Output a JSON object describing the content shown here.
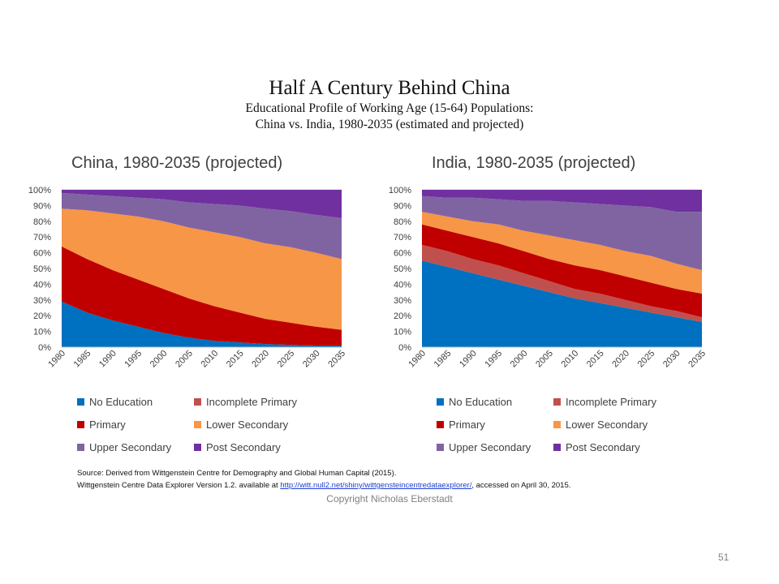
{
  "slide": {
    "title": "Half A Century Behind China",
    "subtitle_line1": "Educational Profile of Working Age (15-64) Populations:",
    "subtitle_line2": "China vs. India, 1980-2035 (estimated and projected)",
    "source_line1": "Source: Derived from Wittgenstein Centre for Demography and Global Human Capital (2015).",
    "source_line2_prefix": "Wittgenstein Centre Data Explorer Version 1.2. available at ",
    "source_link": "http://witt.null2.net/shiny/wittgensteincentredataexplorer/",
    "source_line2_suffix": ", accessed on April 30, 2015.",
    "copyright": "Copyright Nicholas Eberstadt",
    "page_number": "51"
  },
  "colors": {
    "No Education": "#0070c0",
    "Incomplete Primary": "#c0504d",
    "Primary": "#c00000",
    "Lower Secondary": "#f79646",
    "Upper Secondary": "#8064a2",
    "Post Secondary": "#7030a0",
    "gridline": "#d9d9d9",
    "axis_text": "#404040"
  },
  "chart_data": [
    {
      "type": "area",
      "stacked": true,
      "title": "China, 1980-2035 (projected)",
      "x": [
        "1980",
        "1985",
        "1990",
        "1995",
        "2000",
        "2005",
        "2010",
        "2015",
        "2020",
        "2025",
        "2030",
        "2035"
      ],
      "ylim": [
        0,
        100
      ],
      "yticks": [
        "0%",
        "10%",
        "20%",
        "30%",
        "40%",
        "50%",
        "60%",
        "70%",
        "80%",
        "90%",
        "100%"
      ],
      "legend_position": "bottom",
      "series": [
        {
          "name": "No Education",
          "values": [
            29,
            22,
            17,
            13,
            9,
            6,
            4,
            3,
            2,
            1.5,
            1,
            1
          ]
        },
        {
          "name": "Incomplete Primary",
          "values": [
            0,
            0,
            0,
            0,
            0,
            0,
            0,
            0,
            0,
            0,
            0,
            0
          ]
        },
        {
          "name": "Primary",
          "values": [
            35,
            34,
            32,
            30,
            28,
            25,
            22,
            19,
            16,
            14,
            12,
            10
          ]
        },
        {
          "name": "Lower Secondary",
          "values": [
            24,
            31,
            36,
            40,
            43,
            45,
            47,
            48,
            48,
            48,
            47,
            45
          ]
        },
        {
          "name": "Upper Secondary",
          "values": [
            10,
            10,
            11,
            12,
            14,
            16,
            18,
            20,
            22,
            23,
            24,
            26
          ]
        },
        {
          "name": "Post Secondary",
          "values": [
            2,
            3,
            4,
            5,
            6,
            8,
            9,
            10,
            12,
            13.5,
            16,
            18
          ]
        }
      ]
    },
    {
      "type": "area",
      "stacked": true,
      "title": "India, 1980-2035 (projected)",
      "x": [
        "1980",
        "1985",
        "1990",
        "1995",
        "2000",
        "2005",
        "2010",
        "2015",
        "2020",
        "2025",
        "2030",
        "2035"
      ],
      "ylim": [
        0,
        100
      ],
      "yticks": [
        "0%",
        "10%",
        "20%",
        "30%",
        "40%",
        "50%",
        "60%",
        "70%",
        "80%",
        "90%",
        "100%"
      ],
      "legend_position": "bottom",
      "series": [
        {
          "name": "No Education",
          "values": [
            55,
            51,
            47,
            43,
            39,
            35,
            31,
            28,
            25,
            22,
            19,
            16
          ]
        },
        {
          "name": "Incomplete Primary",
          "values": [
            10,
            10,
            9,
            9,
            8,
            7,
            6,
            6,
            5,
            4,
            4,
            3
          ]
        },
        {
          "name": "Primary",
          "values": [
            13,
            13,
            14,
            14,
            14,
            14,
            15,
            15,
            15,
            15,
            14,
            15
          ]
        },
        {
          "name": "Lower Secondary",
          "values": [
            8,
            9,
            10,
            12,
            13,
            15,
            16,
            16,
            16,
            17,
            16,
            15
          ]
        },
        {
          "name": "Upper Secondary",
          "values": [
            10,
            12,
            15,
            16,
            19,
            22,
            24,
            26,
            29,
            31,
            33,
            37
          ]
        },
        {
          "name": "Post Secondary",
          "values": [
            4,
            5,
            5,
            6,
            7,
            7,
            8,
            9,
            10,
            11,
            14,
            14
          ]
        }
      ]
    }
  ]
}
